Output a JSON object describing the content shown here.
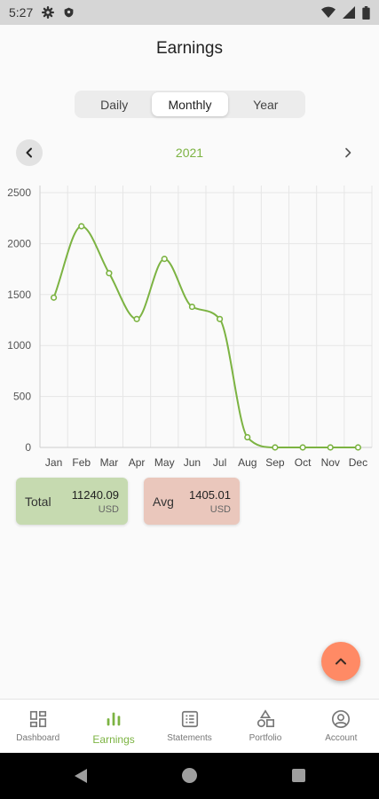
{
  "status_bar": {
    "time": "5:27",
    "icons": [
      "gear-icon",
      "shield-icon",
      "wifi-icon",
      "signal-icon",
      "battery-icon"
    ]
  },
  "header": {
    "title": "Earnings"
  },
  "period_tabs": {
    "items": [
      {
        "label": "Daily"
      },
      {
        "label": "Monthly"
      },
      {
        "label": "Year"
      }
    ],
    "selected": "Monthly"
  },
  "year_nav": {
    "year": "2021",
    "prev_icon": "chevron-left-icon",
    "next_icon": "chevron-right-icon"
  },
  "chart_data": {
    "type": "line",
    "categories": [
      "Jan",
      "Feb",
      "Mar",
      "Apr",
      "May",
      "Jun",
      "Jul",
      "Aug",
      "Sep",
      "Oct",
      "Nov",
      "Dec"
    ],
    "series": [
      {
        "values": [
          1470,
          2170,
          1710,
          1260,
          1850,
          1380,
          1260,
          100,
          0,
          0,
          0,
          0
        ],
        "color": "#7cb342"
      }
    ],
    "yticks": [
      "0",
      "500",
      "1000",
      "1500",
      "2000",
      "2500"
    ],
    "ylim": [
      0,
      2500
    ],
    "grid": true
  },
  "summary": {
    "total": {
      "label": "Total",
      "value": "11240.09",
      "unit": "USD",
      "color": "#c6dab0"
    },
    "avg": {
      "label": "Avg",
      "value": "1405.01",
      "unit": "USD",
      "color": "#eac7bc"
    }
  },
  "fab": {
    "icon": "chevron-up-icon",
    "color": "#ff8a65"
  },
  "bottom_nav": {
    "items": [
      {
        "label": "Dashboard",
        "icon": "dashboard-icon"
      },
      {
        "label": "Earnings",
        "icon": "bar-chart-icon"
      },
      {
        "label": "Statements",
        "icon": "statements-icon"
      },
      {
        "label": "Portfolio",
        "icon": "shapes-icon"
      },
      {
        "label": "Account",
        "icon": "account-icon"
      }
    ],
    "active": "Earnings",
    "accent": "#7cb342"
  }
}
